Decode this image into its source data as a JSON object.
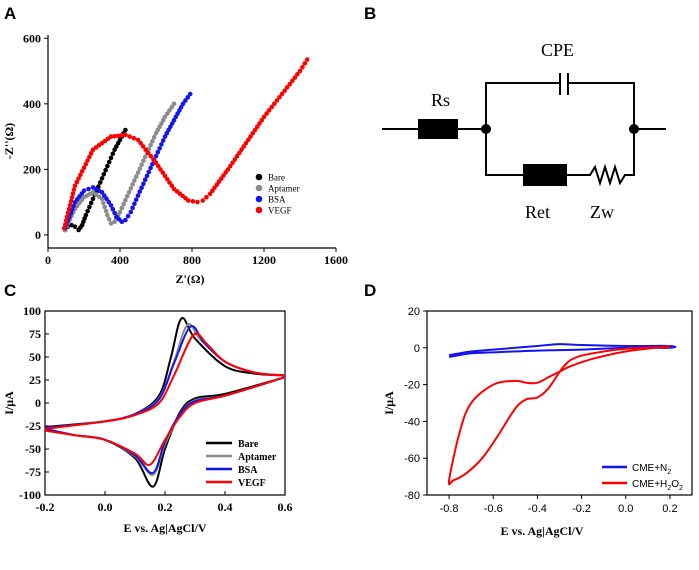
{
  "colors": {
    "black": "#000000",
    "gray": "#8c8c8c",
    "blue": "#1414f0",
    "red": "#ff0000"
  },
  "chart_data": [
    {
      "panel": "A",
      "type": "scatter",
      "xlabel": "Z'(Ω)",
      "ylabel": "-Z''(Ω)",
      "xlim": [
        0,
        1600
      ],
      "ylim": [
        -40,
        610
      ],
      "xticks": [
        "0",
        "400",
        "800",
        "1200",
        "1600"
      ],
      "yticks": [
        "0",
        "200",
        "400",
        "600"
      ],
      "legend_position": "bottom-right",
      "series": [
        {
          "name": "Bare",
          "color": "black",
          "r": [
            60
          ],
          "gap": 10,
          "dx": 4,
          "x": [
            95,
            110,
            130,
            150,
            170,
            190,
            210,
            230,
            250,
            270,
            290,
            310,
            330,
            350,
            370,
            390,
            410,
            430
          ],
          "y": [
            15,
            25,
            30,
            25,
            15,
            30,
            60,
            85,
            110,
            135,
            160,
            185,
            210,
            235,
            260,
            280,
            300,
            320
          ]
        },
        {
          "name": "Aptamer",
          "color": "gray",
          "r": [
            150
          ],
          "gap": 20,
          "dx": 4,
          "x": [
            95,
            150,
            200,
            250,
            300,
            330,
            350,
            370,
            400,
            450,
            500,
            550,
            600,
            650,
            700
          ],
          "y": [
            15,
            80,
            115,
            130,
            110,
            60,
            35,
            40,
            70,
            130,
            190,
            250,
            310,
            360,
            400
          ]
        },
        {
          "name": "BSA",
          "color": "blue",
          "r": [
            165
          ],
          "gap": 20,
          "dx": 4,
          "x": [
            95,
            150,
            200,
            250,
            300,
            350,
            380,
            410,
            430,
            460,
            500,
            550,
            600,
            650,
            700,
            750,
            790
          ],
          "y": [
            20,
            100,
            135,
            145,
            130,
            90,
            55,
            40,
            45,
            70,
            120,
            180,
            240,
            300,
            350,
            400,
            430
          ]
        },
        {
          "name": "VEGF",
          "color": "red",
          "r": [
            375
          ],
          "gap": 20,
          "dx": 4,
          "x": [
            90,
            150,
            250,
            350,
            430,
            500,
            600,
            700,
            780,
            830,
            860,
            900,
            1000,
            1100,
            1200,
            1300,
            1400,
            1440
          ],
          "y": [
            20,
            150,
            260,
            300,
            305,
            290,
            220,
            140,
            105,
            100,
            105,
            125,
            200,
            280,
            360,
            430,
            500,
            535
          ]
        }
      ]
    },
    {
      "panel": "B",
      "type": "diagram",
      "components": [
        "Rs",
        "CPE",
        "Ret",
        "Zw"
      ]
    },
    {
      "panel": "C",
      "type": "line",
      "xlabel": "E vs. Ag|AgCl/V",
      "ylabel": "I/μA",
      "xlim": [
        -0.2,
        0.6
      ],
      "ylim": [
        -100,
        100
      ],
      "xticks": [
        "-0.2",
        "0.0",
        "0.2",
        "0.4",
        "0.6"
      ],
      "yticks": [
        "100",
        "75",
        "50",
        "25",
        "0",
        "-25",
        "-50",
        "-75",
        "-100"
      ],
      "legend_position": "bottom-right",
      "series": [
        {
          "name": "Bare",
          "color": "black",
          "forward": [
            [
              -0.2,
              -26
            ],
            [
              0.0,
              -20
            ],
            [
              0.1,
              -12
            ],
            [
              0.18,
              8
            ],
            [
              0.22,
              50
            ],
            [
              0.255,
              92
            ],
            [
              0.3,
              70
            ],
            [
              0.4,
              40
            ],
            [
              0.5,
              32
            ],
            [
              0.6,
              30
            ]
          ],
          "reverse": [
            [
              0.6,
              28
            ],
            [
              0.4,
              10
            ],
            [
              0.3,
              5
            ],
            [
              0.25,
              -10
            ],
            [
              0.2,
              -50
            ],
            [
              0.16,
              -91
            ],
            [
              0.1,
              -60
            ],
            [
              0.0,
              -40
            ],
            [
              -0.1,
              -35
            ],
            [
              -0.2,
              -28
            ]
          ]
        },
        {
          "name": "Aptamer",
          "color": "gray",
          "forward": [
            [
              -0.2,
              -27
            ],
            [
              0.0,
              -20
            ],
            [
              0.1,
              -12
            ],
            [
              0.18,
              5
            ],
            [
              0.23,
              45
            ],
            [
              0.275,
              85
            ],
            [
              0.32,
              68
            ],
            [
              0.4,
              45
            ],
            [
              0.5,
              33
            ],
            [
              0.6,
              30
            ]
          ],
          "reverse": [
            [
              0.6,
              28
            ],
            [
              0.4,
              8
            ],
            [
              0.3,
              3
            ],
            [
              0.25,
              -12
            ],
            [
              0.2,
              -45
            ],
            [
              0.16,
              -78
            ],
            [
              0.1,
              -58
            ],
            [
              0.0,
              -40
            ],
            [
              -0.1,
              -35
            ],
            [
              -0.2,
              -28
            ]
          ]
        },
        {
          "name": "BSA",
          "color": "blue",
          "forward": [
            [
              -0.2,
              -27
            ],
            [
              0.0,
              -20
            ],
            [
              0.1,
              -12
            ],
            [
              0.18,
              4
            ],
            [
              0.23,
              43
            ],
            [
              0.285,
              83
            ],
            [
              0.33,
              66
            ],
            [
              0.4,
              45
            ],
            [
              0.5,
              33
            ],
            [
              0.6,
              30
            ]
          ],
          "reverse": [
            [
              0.6,
              28
            ],
            [
              0.4,
              8
            ],
            [
              0.3,
              2
            ],
            [
              0.25,
              -12
            ],
            [
              0.2,
              -42
            ],
            [
              0.16,
              -76
            ],
            [
              0.1,
              -57
            ],
            [
              0.0,
              -40
            ],
            [
              -0.1,
              -35
            ],
            [
              -0.2,
              -28
            ]
          ]
        },
        {
          "name": "VEGF",
          "color": "red",
          "forward": [
            [
              -0.2,
              -28
            ],
            [
              0.0,
              -20
            ],
            [
              0.1,
              -13
            ],
            [
              0.18,
              0
            ],
            [
              0.23,
              30
            ],
            [
              0.295,
              74
            ],
            [
              0.34,
              64
            ],
            [
              0.4,
              45
            ],
            [
              0.5,
              33
            ],
            [
              0.6,
              30
            ]
          ],
          "reverse": [
            [
              0.6,
              28
            ],
            [
              0.4,
              8
            ],
            [
              0.3,
              0
            ],
            [
              0.25,
              -15
            ],
            [
              0.2,
              -40
            ],
            [
              0.15,
              -67
            ],
            [
              0.1,
              -55
            ],
            [
              0.0,
              -40
            ],
            [
              -0.1,
              -35
            ],
            [
              -0.2,
              -30
            ]
          ]
        }
      ]
    },
    {
      "panel": "D",
      "type": "line",
      "xlabel": "E vs. Ag|AgCl/V",
      "ylabel": "I/μA",
      "xlim": [
        -0.9,
        0.3
      ],
      "ylim": [
        -80,
        20
      ],
      "xticks": [
        "-0.8",
        "-0.6",
        "-0.4",
        "-0.2",
        "0.0",
        "0.2"
      ],
      "yticks": [
        "20",
        "0",
        "-20",
        "-40",
        "-60",
        "-80"
      ],
      "legend_position": "bottom-right",
      "series": [
        {
          "name": "CME+N2",
          "label_base": "CME+N",
          "label_sub": "2",
          "color": "blue",
          "points": [
            [
              -0.8,
              -4
            ],
            [
              -0.7,
              -2
            ],
            [
              -0.6,
              -1
            ],
            [
              -0.4,
              1
            ],
            [
              -0.3,
              2
            ],
            [
              -0.2,
              1.5
            ],
            [
              0.0,
              1
            ],
            [
              0.2,
              1
            ],
            [
              0.2,
              0
            ],
            [
              0.0,
              0
            ],
            [
              -0.2,
              -1
            ],
            [
              -0.4,
              -1.5
            ],
            [
              -0.6,
              -2.5
            ],
            [
              -0.7,
              -3
            ],
            [
              -0.8,
              -5
            ]
          ]
        },
        {
          "name": "CME+H2O2",
          "label_base": "CME+H",
          "label_sub1": "2",
          "label_mid": "O",
          "label_sub2": "2",
          "color": "red",
          "points": [
            [
              0.2,
              1
            ],
            [
              0.0,
              -2
            ],
            [
              -0.15,
              -6
            ],
            [
              -0.25,
              -10
            ],
            [
              -0.3,
              -13
            ],
            [
              -0.35,
              -16
            ],
            [
              -0.4,
              -19
            ],
            [
              -0.45,
              -19
            ],
            [
              -0.5,
              -18
            ],
            [
              -0.6,
              -20
            ],
            [
              -0.7,
              -30
            ],
            [
              -0.75,
              -45
            ],
            [
              -0.8,
              -72
            ],
            [
              -0.78,
              -72
            ],
            [
              -0.72,
              -68
            ],
            [
              -0.65,
              -60
            ],
            [
              -0.58,
              -48
            ],
            [
              -0.5,
              -33
            ],
            [
              -0.45,
              -28
            ],
            [
              -0.4,
              -27
            ],
            [
              -0.35,
              -22
            ],
            [
              -0.28,
              -10
            ],
            [
              -0.22,
              -5
            ],
            [
              -0.1,
              -2
            ],
            [
              0.0,
              -0.5
            ],
            [
              0.2,
              0.5
            ]
          ]
        }
      ]
    }
  ]
}
